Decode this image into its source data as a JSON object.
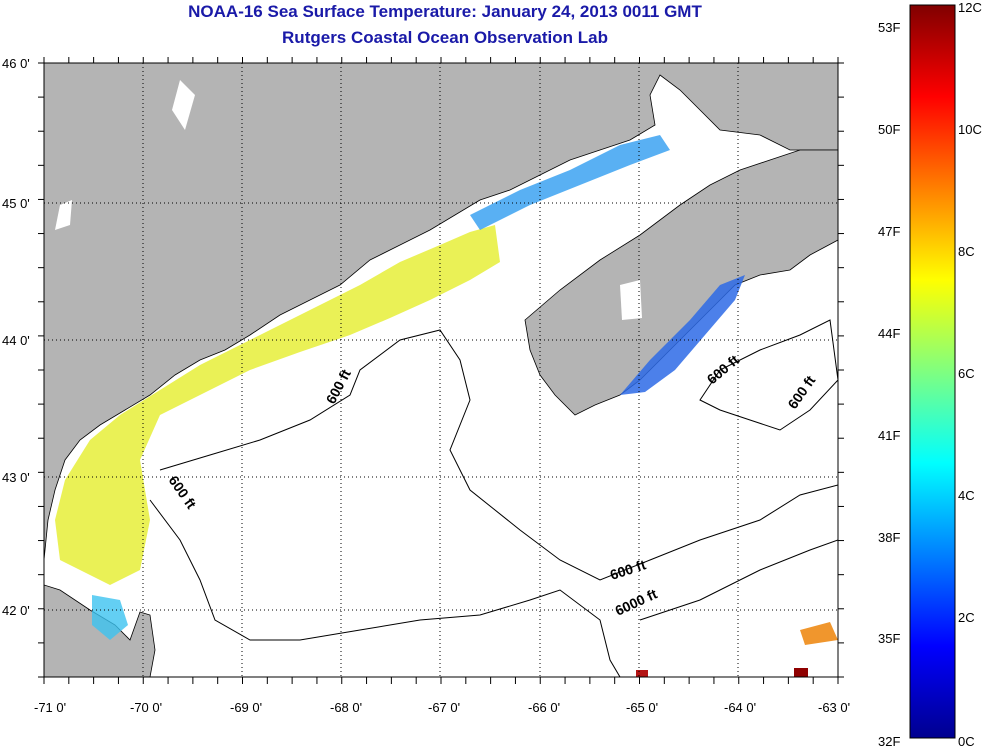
{
  "title": {
    "line1": "NOAA-16 Sea Surface Temperature:  January 24, 2013 0011 GMT",
    "line2": "Rutgers Coastal Ocean Observation Lab"
  },
  "map": {
    "lat_labels": [
      "46 0'",
      "45 0'",
      "44 0'",
      "43 0'",
      "42 0'"
    ],
    "lon_labels": [
      "-71 0'",
      "-70 0'",
      "-69 0'",
      "-68 0'",
      "-67 0'",
      "-66 0'",
      "-65 0'",
      "-64 0'",
      "-63 0'"
    ],
    "depth_labels": [
      "600 ft",
      "600 ft",
      "600 ft",
      "600 ft",
      "600 ft",
      "6000 ft"
    ],
    "land_color": "#b4b4b4",
    "grid": true
  },
  "colorbar": {
    "fahrenheit": [
      "53F",
      "50F",
      "47F",
      "44F",
      "41F",
      "38F",
      "35F",
      "32F"
    ],
    "celsius": [
      "12C",
      "10C",
      "8C",
      "6C",
      "4C",
      "2C",
      "0C"
    ],
    "colormap": "jet"
  }
}
